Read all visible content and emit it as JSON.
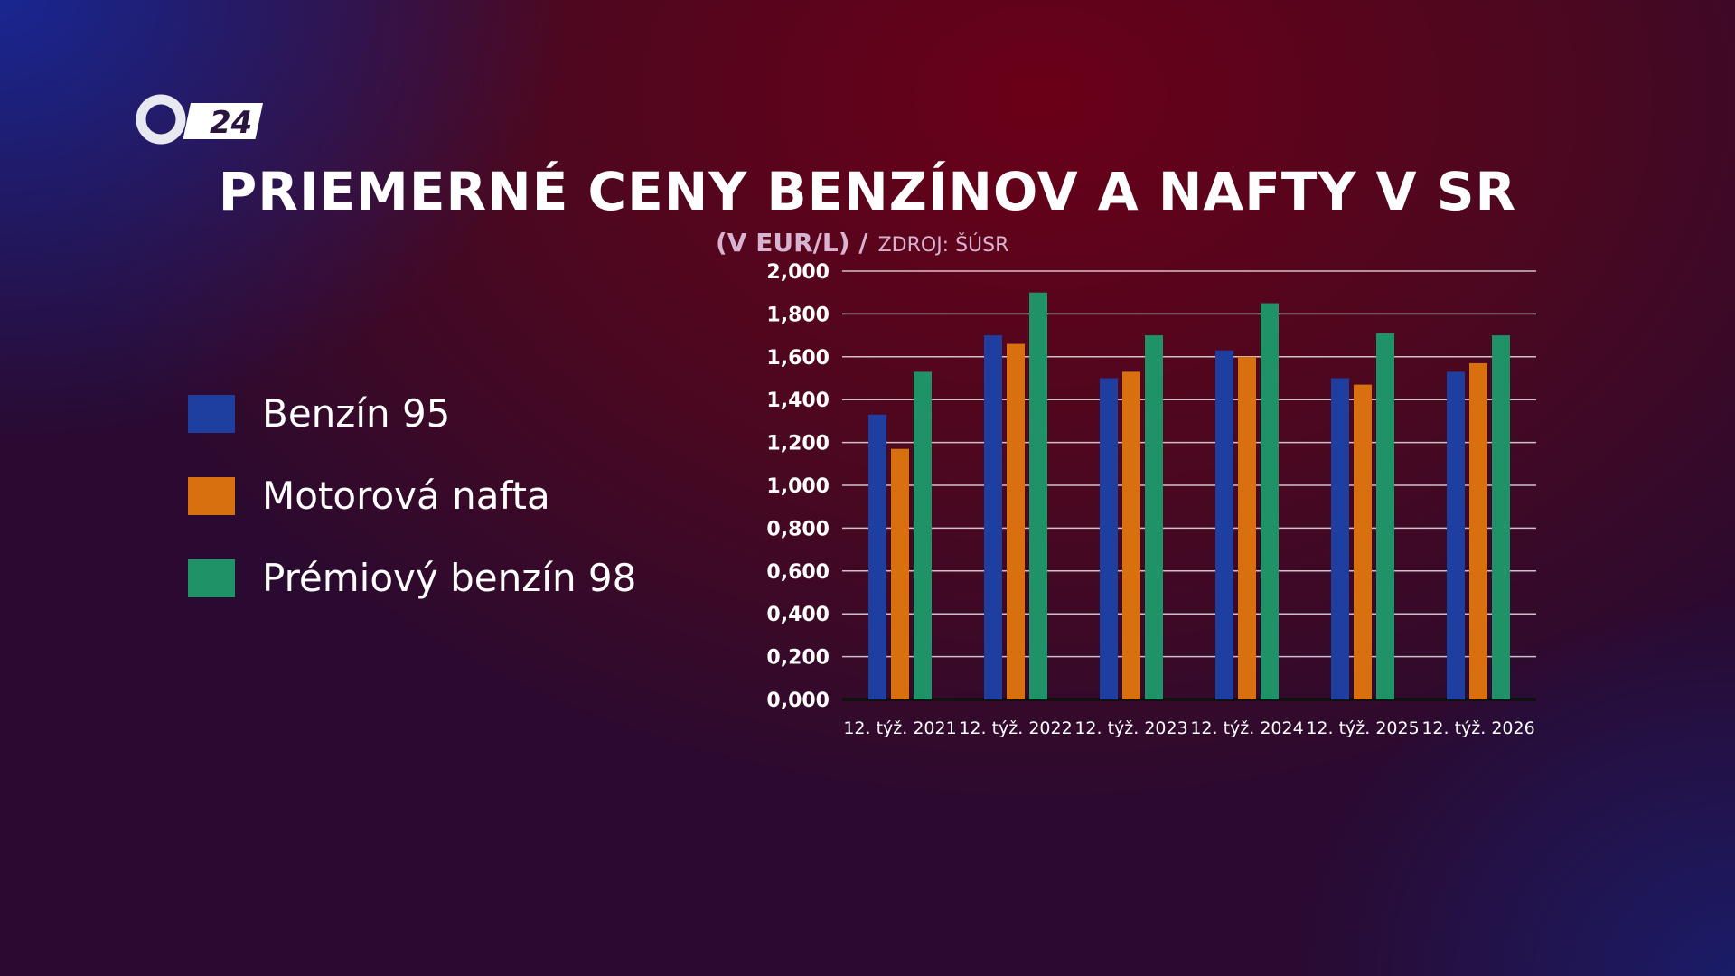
{
  "logo": {
    "text": "24"
  },
  "chart_data": {
    "type": "bar",
    "title": "PRIEMERNÉ CENY BENZÍNOV A NAFTY V SR",
    "subtitle_unit": "(V EUR/L) /",
    "subtitle_source": "ZDROJ: ŠÚSR",
    "xlabel": "",
    "ylabel": "",
    "ylim": [
      0,
      2.0
    ],
    "yticks": [
      "0,000",
      "0,200",
      "0,400",
      "0,600",
      "0,800",
      "1,000",
      "1,200",
      "1,400",
      "1,600",
      "1,800",
      "2,000"
    ],
    "grid": true,
    "legend_position": "left",
    "categories": [
      "12. týž. 2021",
      "12. týž. 2022",
      "12. týž. 2023",
      "12. týž. 2024",
      "12. týž. 2025",
      "12. týž. 2026"
    ],
    "series": [
      {
        "name": "Benzín 95",
        "color": "#1f3fa0",
        "values": [
          1.33,
          1.7,
          1.5,
          1.63,
          1.5,
          1.53
        ]
      },
      {
        "name": "Motorová nafta",
        "color": "#d9700f",
        "values": [
          1.17,
          1.66,
          1.53,
          1.6,
          1.47,
          1.57
        ]
      },
      {
        "name": "Prémiový benzín 98",
        "color": "#1f9268",
        "values": [
          1.53,
          1.9,
          1.7,
          1.85,
          1.71,
          1.7
        ]
      }
    ]
  }
}
